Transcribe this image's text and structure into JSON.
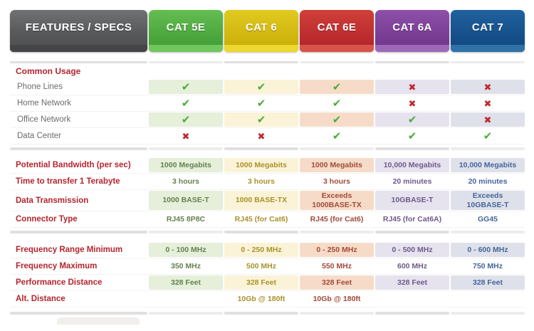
{
  "header": {
    "features_label": "FEATURES / SPECS",
    "columns": [
      {
        "label": "CAT 5E",
        "color": "#4aa63f"
      },
      {
        "label": "CAT 6",
        "color": "#d3b60f"
      },
      {
        "label": "CAT 6E",
        "color": "#c1272d"
      },
      {
        "label": "CAT 6A",
        "color": "#7c4099"
      },
      {
        "label": "CAT 7",
        "color": "#16508c"
      }
    ]
  },
  "sections": [
    {
      "title": "Common Usage",
      "rows": [
        {
          "label": "Phone Lines",
          "values": [
            "check",
            "check",
            "check",
            "cross",
            "cross"
          ]
        },
        {
          "label": "Home Network",
          "values": [
            "check",
            "check",
            "check",
            "cross",
            "cross"
          ]
        },
        {
          "label": "Office Network",
          "values": [
            "check",
            "check",
            "check",
            "check",
            "cross"
          ]
        },
        {
          "label": "Data Center",
          "values": [
            "cross",
            "cross",
            "check",
            "check",
            "check"
          ]
        }
      ]
    },
    {
      "rows": [
        {
          "label": "Potential Bandwidth (per sec)",
          "values": [
            "1000 Megabits",
            "1000 Megabits",
            "1000 Megabits",
            "10,000 Megabits",
            "10,000 Megabits"
          ]
        },
        {
          "label": "Time to transfer 1 Terabyte",
          "values": [
            "3 hours",
            "3 hours",
            "3 hours",
            "20 minutes",
            "20 minutes"
          ]
        },
        {
          "label": "Data Transmission",
          "values": [
            "1000 BASE-T",
            "1000 BASE-TX",
            "Exceeds\n1000BASE-TX",
            "10GBASE-T",
            "Exceeds\n10GBASE-T"
          ]
        },
        {
          "label": "Connector Type",
          "values": [
            "RJ45 8P8C",
            "RJ45 (for Cat6)",
            "RJ45 (for Cat6)",
            "RJ45 (for Cat6A)",
            "GG45"
          ]
        }
      ]
    },
    {
      "rows": [
        {
          "label": "Frequency Range Minimum",
          "values": [
            "0 - 100 MHz",
            "0 - 250 MHz",
            "0 - 250 MHz",
            "0 - 500 MHz",
            "0 - 600 MHz"
          ]
        },
        {
          "label": "Frequency Maximum",
          "values": [
            "350 MHz",
            "500 MHz",
            "550 MHz",
            "600 MHz",
            "750 MHz"
          ]
        },
        {
          "label": "Performance Distance",
          "values": [
            "328 Feet",
            "328 Feet",
            "328 Feet",
            "328 Feet",
            "328 Feet"
          ]
        },
        {
          "label": "Alt. Distance",
          "values": [
            "",
            "10Gb @ 180ft",
            "10Gb @ 180ft",
            "",
            ""
          ]
        }
      ]
    }
  ],
  "marks": {
    "check_glyph": "✔",
    "cross_glyph": "✖",
    "check_color": "#49ad39",
    "cross_color": "#c1272d"
  },
  "chart_data": {
    "type": "table",
    "columns": [
      "FEATURES / SPECS",
      "CAT 5E",
      "CAT 6",
      "CAT 6E",
      "CAT 6A",
      "CAT 7"
    ],
    "rows": [
      [
        "Common Usage",
        "",
        "",
        "",
        "",
        ""
      ],
      [
        "Phone Lines",
        "yes",
        "yes",
        "yes",
        "no",
        "no"
      ],
      [
        "Home Network",
        "yes",
        "yes",
        "yes",
        "no",
        "no"
      ],
      [
        "Office Network",
        "yes",
        "yes",
        "yes",
        "yes",
        "no"
      ],
      [
        "Data Center",
        "no",
        "no",
        "yes",
        "yes",
        "yes"
      ],
      [
        "Potential Bandwidth (per sec)",
        "1000 Megabits",
        "1000 Megabits",
        "1000 Megabits",
        "10,000 Megabits",
        "10,000 Megabits"
      ],
      [
        "Time to transfer 1 Terabyte",
        "3 hours",
        "3 hours",
        "3 hours",
        "20 minutes",
        "20 minutes"
      ],
      [
        "Data Transmission",
        "1000 BASE-T",
        "1000 BASE-TX",
        "Exceeds 1000BASE-TX",
        "10GBASE-T",
        "Exceeds 10GBASE-T"
      ],
      [
        "Connector Type",
        "RJ45 8P8C",
        "RJ45 (for Cat6)",
        "RJ45 (for Cat6)",
        "RJ45 (for Cat6A)",
        "GG45"
      ],
      [
        "Frequency Range Minimum",
        "0 - 100 MHz",
        "0 - 250 MHz",
        "0 - 250 MHz",
        "0 - 500 MHz",
        "0 - 600 MHz"
      ],
      [
        "Frequency Maximum",
        "350 MHz",
        "500 MHz",
        "550 MHz",
        "600 MHz",
        "750 MHz"
      ],
      [
        "Performance Distance",
        "328 Feet",
        "328 Feet",
        "328 Feet",
        "328 Feet",
        "328 Feet"
      ],
      [
        "Alt. Distance",
        "",
        "10Gb @ 180ft",
        "10Gb @ 180ft",
        "",
        ""
      ]
    ]
  }
}
